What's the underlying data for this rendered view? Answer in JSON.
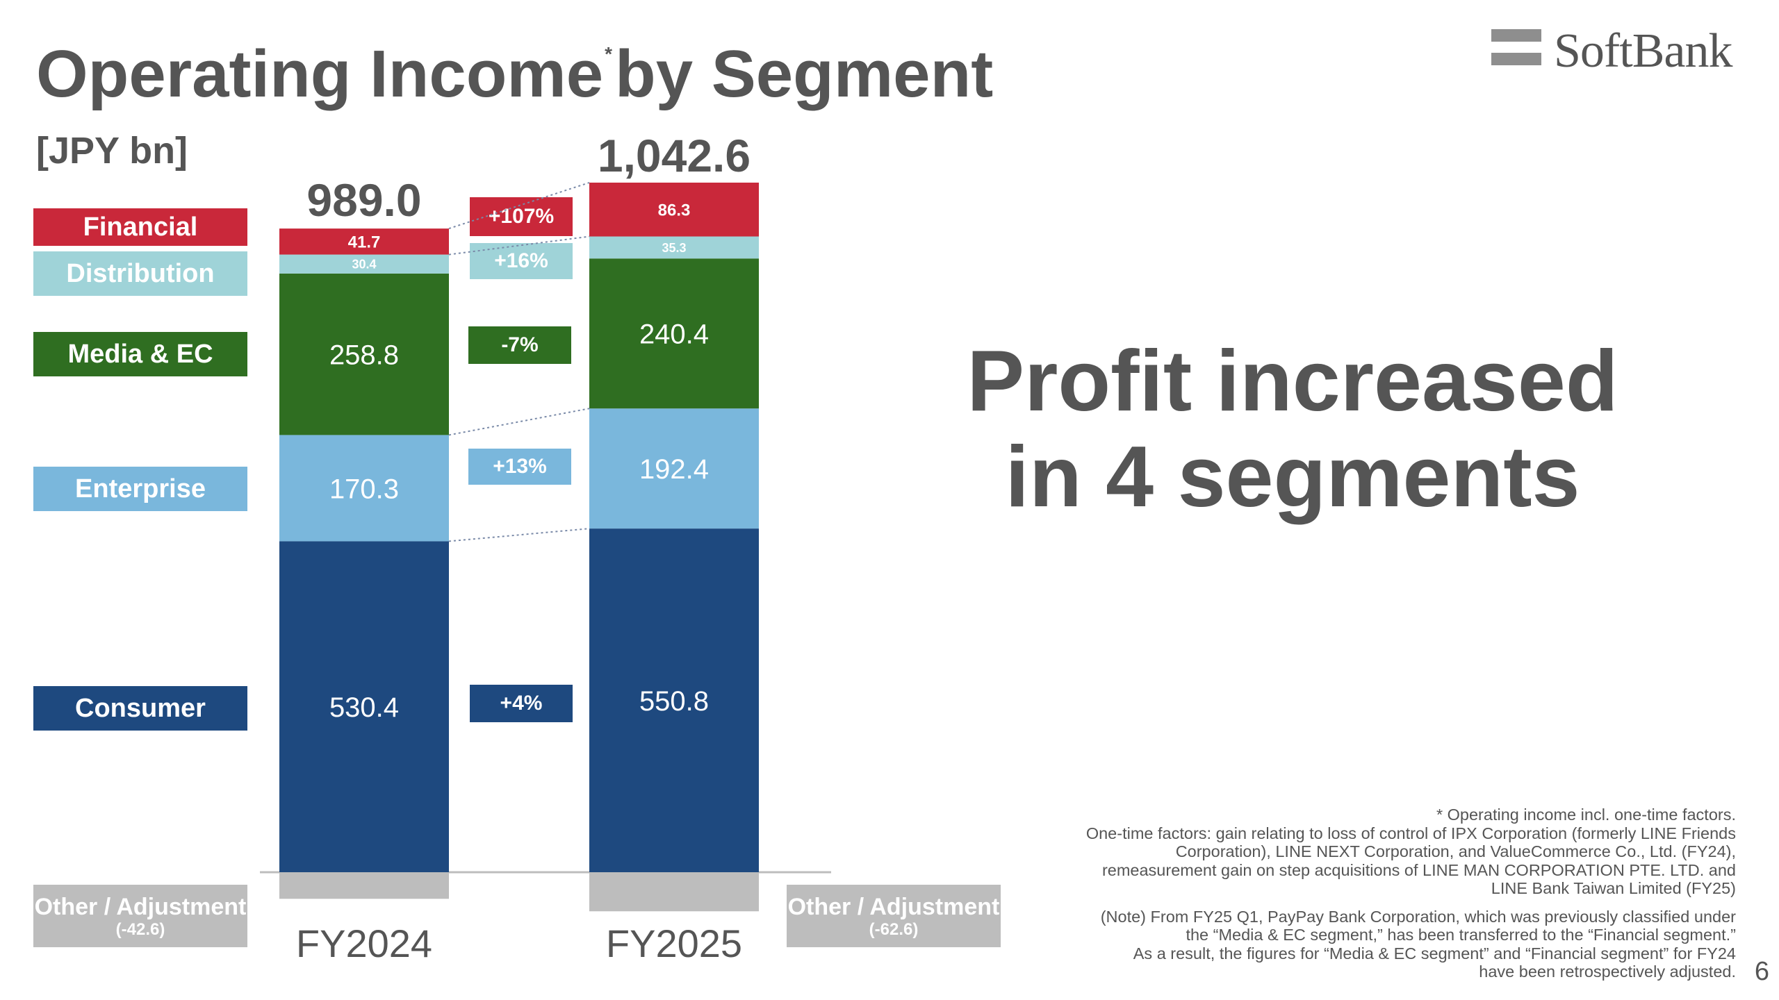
{
  "slide": {
    "title_main": "Operating Income",
    "title_mark": "*",
    "title_tail": "by Segment",
    "unit": "[JPY bn]",
    "logo": "SoftBank",
    "headline_line1": "Profit increased",
    "headline_line2": "in 4 segments",
    "page_number": "6"
  },
  "notes": {
    "line1": "* Operating income incl. one-time factors.",
    "line2": "One-time factors: gain relating to loss of control of IPX Corporation (formerly LINE Friends",
    "line3": "Corporation), LINE NEXT Corporation, and ValueCommerce Co., Ltd. (FY24),",
    "line4": "remeasurement gain on step acquisitions of LINE MAN CORPORATION PTE. LTD. and",
    "line5": "LINE Bank Taiwan Limited (FY25)",
    "line6": "(Note) From FY25 Q1, PayPay Bank Corporation, which was previously classified under",
    "line7": "the “Media & EC segment,” has been transferred to the “Financial segment.”",
    "line8": "As a result, the figures for “Media & EC segment” and “Financial segment” for FY24",
    "line9": "have been retrospectively adjusted."
  },
  "legend": {
    "financial": "Financial",
    "distribution": "Distribution",
    "media_ec": "Media & EC",
    "enterprise": "Enterprise",
    "consumer": "Consumer"
  },
  "adjustment": {
    "label": "Other / Adjustment",
    "fy2024": "(-42.6)",
    "fy2025": "(-62.6)"
  },
  "colors": {
    "financial": "#c9283a",
    "distribution": "#9fd3d8",
    "media_ec": "#2f6e21",
    "enterprise": "#7ab7dc",
    "consumer": "#1e497f",
    "adjustment": "#bdbdbd",
    "text": "#555555"
  },
  "changes": {
    "financial": "+107%",
    "distribution": "+16%",
    "media_ec": "-7%",
    "enterprise": "+13%",
    "consumer": "+4%"
  },
  "totals": {
    "fy2024": "989.0",
    "fy2025": "1,042.6"
  },
  "chart_data": {
    "type": "bar",
    "stacked": true,
    "categories": [
      "FY2024",
      "FY2025"
    ],
    "series": [
      {
        "name": "Consumer",
        "values": [
          530.4,
          550.8
        ],
        "labels": [
          "530.4",
          "550.8"
        ],
        "color": "#1e497f",
        "label_color": "#ffffff"
      },
      {
        "name": "Enterprise",
        "values": [
          170.3,
          192.4
        ],
        "labels": [
          "170.3",
          "192.4"
        ],
        "color": "#7ab7dc",
        "label_color": "#ffffff"
      },
      {
        "name": "Media & EC",
        "values": [
          258.8,
          240.4
        ],
        "labels": [
          "258.8",
          "240.4"
        ],
        "color": "#2f6e21",
        "label_color": "#ffffff"
      },
      {
        "name": "Distribution",
        "values": [
          30.4,
          35.3
        ],
        "labels": [
          "30.4",
          "35.3"
        ],
        "color": "#9fd3d8",
        "label_color": "#ffffff"
      },
      {
        "name": "Financial",
        "values": [
          41.7,
          86.3
        ],
        "labels": [
          "41.7",
          "86.3"
        ],
        "color": "#c9283a",
        "label_color": "#ffffff"
      },
      {
        "name": "Other / Adjustment",
        "values": [
          -42.6,
          -62.6
        ],
        "labels": [
          "(-42.6)",
          "(-62.6)"
        ],
        "color": "#bdbdbd"
      }
    ],
    "totals": [
      989.0,
      1042.6
    ],
    "title": "Operating Income* by Segment",
    "ylabel": "[JPY bn]"
  }
}
